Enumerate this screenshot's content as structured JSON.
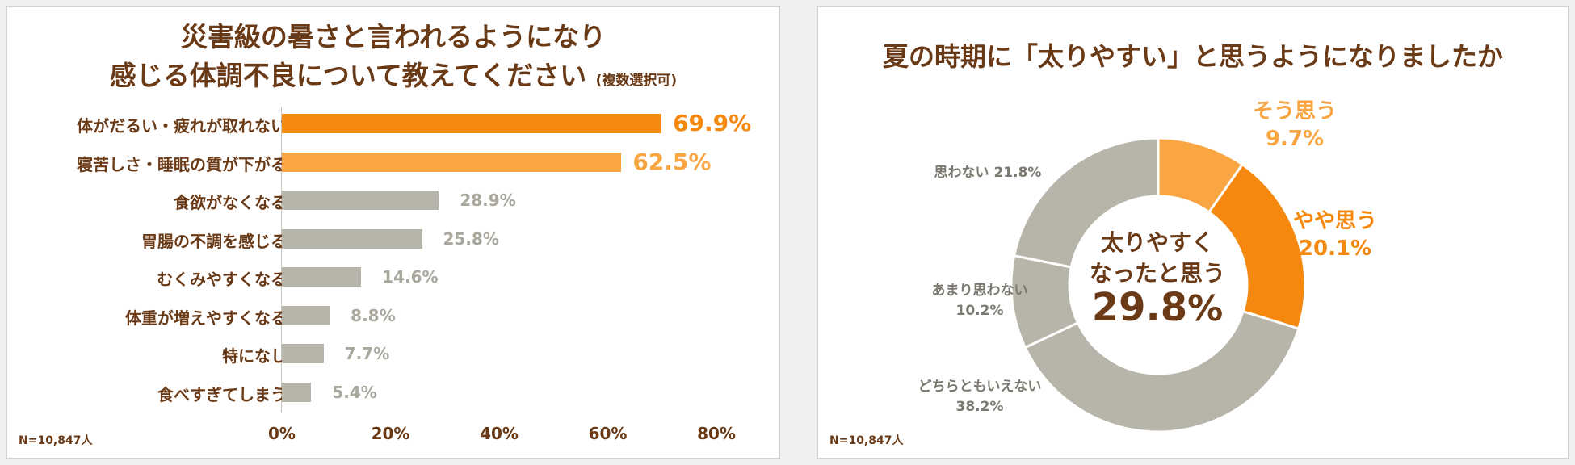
{
  "chart_data": [
    {
      "type": "bar",
      "title_line1": "災害級の暑さと言われるようになり",
      "title_line2": "感じる体調不良について教えてください",
      "title_note": "(複数選択可)",
      "categories": [
        "体がだるい・疲れが取れない",
        "寝苦しさ・睡眠の質が下がる",
        "食欲がなくなる",
        "胃腸の不調を感じる",
        "むくみやすくなる",
        "体重が増えやすくなる",
        "特になし",
        "食べすぎてしまう"
      ],
      "values": [
        69.9,
        62.5,
        28.9,
        25.8,
        14.6,
        8.8,
        7.7,
        5.4
      ],
      "value_labels": [
        "69.9%",
        "62.5%",
        "28.9%",
        "25.8%",
        "14.6%",
        "8.8%",
        "7.7%",
        "5.4%"
      ],
      "xlim": [
        0,
        80
      ],
      "xticks": [
        "0%",
        "20%",
        "40%",
        "60%",
        "80%"
      ],
      "n_label": "N=10,847人",
      "colors": [
        "#f5890f",
        "#f8a542",
        "#b7b5a9",
        "#b7b5a9",
        "#b7b5a9",
        "#b7b5a9",
        "#b7b5a9",
        "#b7b5a9"
      ]
    },
    {
      "type": "pie",
      "title": "夏の時期に「太りやすい」と思うようになりましたか",
      "slices": [
        {
          "label": "そう思う",
          "value": 9.7,
          "value_label": "9.7%",
          "color": "#f8a542"
        },
        {
          "label": "やや思う",
          "value": 20.1,
          "value_label": "20.1%",
          "color": "#f5890f"
        },
        {
          "label": "どちらともいえない",
          "value": 38.2,
          "value_label": "38.2%",
          "color": "#b7b5a9"
        },
        {
          "label": "あまり思わない",
          "value": 10.2,
          "value_label": "10.2%",
          "color": "#b7b5a9"
        },
        {
          "label": "思わない",
          "value": 21.8,
          "value_label": "21.8%",
          "color": "#b7b5a9"
        }
      ],
      "center_line1": "太りやすく",
      "center_line2": "なったと思う",
      "center_value": "29.8",
      "center_unit": "%",
      "n_label": "N=10,847人"
    }
  ]
}
